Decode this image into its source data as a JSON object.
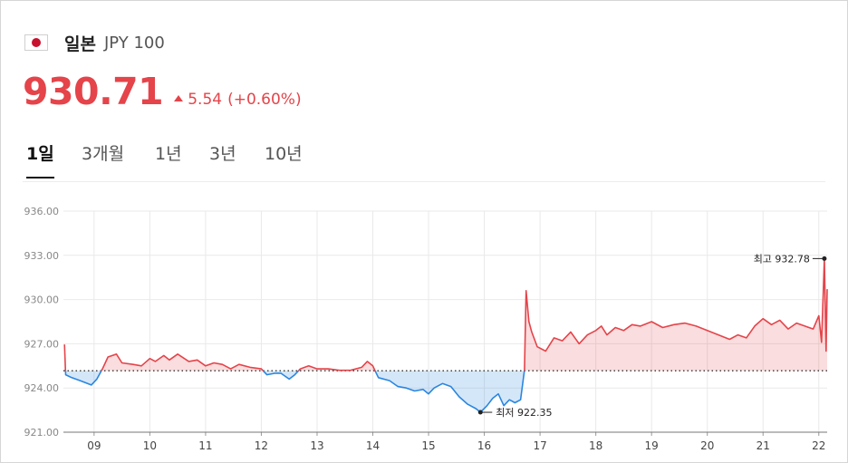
{
  "header": {
    "flag_icon": "japan-flag-icon",
    "country": "일본",
    "code": "JPY 100"
  },
  "quote": {
    "price": "930.71",
    "change_icon": "triangle-up-icon",
    "change": "5.54",
    "change_pct": "(+0.60%)",
    "color": "#e4444a"
  },
  "tabs": [
    {
      "label": "1일",
      "active": true
    },
    {
      "label": "3개월",
      "active": false
    },
    {
      "label": "1년",
      "active": false
    },
    {
      "label": "3년",
      "active": false
    },
    {
      "label": "10년",
      "active": false
    }
  ],
  "chart_data": {
    "type": "line",
    "baseline": 925.17,
    "ylim": [
      921.0,
      936.0
    ],
    "yticks": [
      "936.00",
      "933.00",
      "930.00",
      "927.00",
      "924.00",
      "921.00"
    ],
    "ytick_values": [
      936,
      933,
      930,
      927,
      924,
      921
    ],
    "xlim": [
      8.45,
      22.15
    ],
    "xticks": [
      "09",
      "10",
      "11",
      "12",
      "13",
      "14",
      "15",
      "16",
      "17",
      "18",
      "19",
      "20",
      "21",
      "22"
    ],
    "xtick_values": [
      9,
      10,
      11,
      12,
      13,
      14,
      15,
      16,
      17,
      18,
      19,
      20,
      21,
      22
    ],
    "up_color": "#e4444a",
    "down_color": "#2a86e0",
    "grid": true,
    "annotations": {
      "high": {
        "label": "최고",
        "value": "932.78",
        "x": 22.1,
        "y": 932.78
      },
      "low": {
        "label": "최저",
        "value": "922.35",
        "x": 15.93,
        "y": 922.35
      }
    },
    "points": [
      [
        8.47,
        926.95
      ],
      [
        8.49,
        924.9
      ],
      [
        8.6,
        924.7
      ],
      [
        8.75,
        924.5
      ],
      [
        8.95,
        924.2
      ],
      [
        9.05,
        924.6
      ],
      [
        9.15,
        925.3
      ],
      [
        9.25,
        926.1
      ],
      [
        9.4,
        926.3
      ],
      [
        9.5,
        925.7
      ],
      [
        9.7,
        925.6
      ],
      [
        9.85,
        925.5
      ],
      [
        10.0,
        926.0
      ],
      [
        10.1,
        925.8
      ],
      [
        10.25,
        926.2
      ],
      [
        10.35,
        925.9
      ],
      [
        10.5,
        926.3
      ],
      [
        10.7,
        925.8
      ],
      [
        10.85,
        925.9
      ],
      [
        11.0,
        925.5
      ],
      [
        11.15,
        925.7
      ],
      [
        11.3,
        925.6
      ],
      [
        11.45,
        925.3
      ],
      [
        11.6,
        925.6
      ],
      [
        11.8,
        925.4
      ],
      [
        12.0,
        925.3
      ],
      [
        12.1,
        924.9
      ],
      [
        12.25,
        925.0
      ],
      [
        12.35,
        925.0
      ],
      [
        12.5,
        924.6
      ],
      [
        12.6,
        924.9
      ],
      [
        12.7,
        925.3
      ],
      [
        12.85,
        925.5
      ],
      [
        13.0,
        925.3
      ],
      [
        13.2,
        925.3
      ],
      [
        13.4,
        925.2
      ],
      [
        13.6,
        925.2
      ],
      [
        13.8,
        925.4
      ],
      [
        13.9,
        925.8
      ],
      [
        14.0,
        925.5
      ],
      [
        14.1,
        924.7
      ],
      [
        14.3,
        924.5
      ],
      [
        14.45,
        924.1
      ],
      [
        14.6,
        924.0
      ],
      [
        14.75,
        923.8
      ],
      [
        14.9,
        923.9
      ],
      [
        15.0,
        923.6
      ],
      [
        15.1,
        924.0
      ],
      [
        15.25,
        924.3
      ],
      [
        15.4,
        924.1
      ],
      [
        15.55,
        923.4
      ],
      [
        15.7,
        922.9
      ],
      [
        15.85,
        922.6
      ],
      [
        15.93,
        922.35
      ],
      [
        16.05,
        922.8
      ],
      [
        16.15,
        923.3
      ],
      [
        16.25,
        923.6
      ],
      [
        16.35,
        922.8
      ],
      [
        16.45,
        923.2
      ],
      [
        16.55,
        923.0
      ],
      [
        16.65,
        923.2
      ],
      [
        16.72,
        925.2
      ],
      [
        16.75,
        930.6
      ],
      [
        16.8,
        928.5
      ],
      [
        16.85,
        927.8
      ],
      [
        16.95,
        926.8
      ],
      [
        17.1,
        926.5
      ],
      [
        17.25,
        927.4
      ],
      [
        17.4,
        927.2
      ],
      [
        17.55,
        927.8
      ],
      [
        17.7,
        927.0
      ],
      [
        17.85,
        927.6
      ],
      [
        18.0,
        927.9
      ],
      [
        18.1,
        928.2
      ],
      [
        18.2,
        927.6
      ],
      [
        18.35,
        928.1
      ],
      [
        18.5,
        927.9
      ],
      [
        18.65,
        928.3
      ],
      [
        18.8,
        928.2
      ],
      [
        19.0,
        928.5
      ],
      [
        19.2,
        928.1
      ],
      [
        19.4,
        928.3
      ],
      [
        19.6,
        928.4
      ],
      [
        19.8,
        928.2
      ],
      [
        20.0,
        927.9
      ],
      [
        20.2,
        927.6
      ],
      [
        20.4,
        927.3
      ],
      [
        20.55,
        927.6
      ],
      [
        20.7,
        927.4
      ],
      [
        20.85,
        928.2
      ],
      [
        21.0,
        928.7
      ],
      [
        21.15,
        928.3
      ],
      [
        21.3,
        928.6
      ],
      [
        21.45,
        928.0
      ],
      [
        21.6,
        928.4
      ],
      [
        21.75,
        928.2
      ],
      [
        21.9,
        928.0
      ],
      [
        22.0,
        928.9
      ],
      [
        22.05,
        927.1
      ],
      [
        22.08,
        930.5
      ],
      [
        22.1,
        932.78
      ],
      [
        22.13,
        926.5
      ],
      [
        22.15,
        930.71
      ]
    ]
  }
}
